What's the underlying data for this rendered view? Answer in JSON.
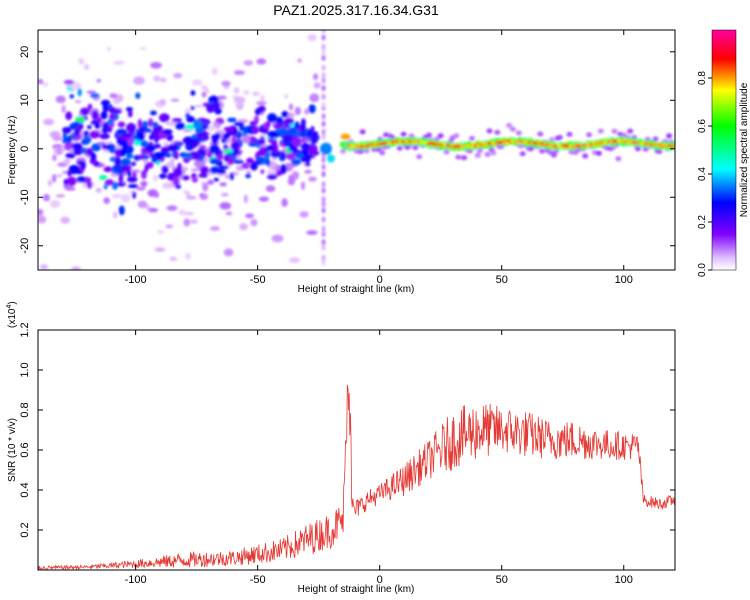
{
  "title": "PAZ1.2025.317.16.34.G31",
  "chart_data": [
    {
      "type": "heatmap",
      "name": "spectrogram",
      "xlabel": "Height of straight line (km)",
      "ylabel": "Frequency (Hz)",
      "xlim": [
        -140,
        121
      ],
      "ylim": [
        -25,
        24.5
      ],
      "xticks": [
        -100,
        -50,
        0,
        50,
        100
      ],
      "yticks": [
        -20,
        -10,
        0,
        10,
        20
      ],
      "colorbar": {
        "label": "Normalized spectral amplitude",
        "range": [
          0,
          1
        ],
        "ticks": [
          "0.0",
          "0.2",
          "0.4",
          "0.6",
          "0.8"
        ],
        "tick_values": [
          0.0,
          0.2,
          0.4,
          0.6,
          0.8
        ],
        "colors": [
          "#ffffff",
          "#e8c8ff",
          "#8000ff",
          "#0000ff",
          "#00ffff",
          "#00ff00",
          "#ffff00",
          "#ff0000",
          "#ff00a0"
        ]
      },
      "ridges": [
        {
          "name": "pre-event scatter",
          "x_range": [
            -140,
            -25
          ],
          "center_freq": 0,
          "freq_spread": 8,
          "amplitude": 0.25
        },
        {
          "name": "post-event line",
          "x_range": [
            -15,
            121
          ],
          "center_freq": 1,
          "freq_spread": 1,
          "amplitude": 0.9
        }
      ]
    },
    {
      "type": "line",
      "name": "snr",
      "xlabel": "Height of straight line (km)",
      "ylabel": "SNR (10 * v/v)",
      "multiplier_label": "(x10",
      "multiplier_exp": "4",
      "xlim": [
        -140,
        121
      ],
      "ylim": [
        0,
        1.2
      ],
      "xticks": [
        -100,
        -50,
        0,
        50,
        100
      ],
      "yticks": [
        "0.2",
        "0.4",
        "0.6",
        "0.8",
        "1.0",
        "1.2"
      ],
      "ytick_values": [
        0.2,
        0.4,
        0.6,
        0.8,
        1.0,
        1.2
      ],
      "color": "#e53935",
      "envelope": {
        "x": [
          -140,
          -120,
          -100,
          -80,
          -60,
          -40,
          -30,
          -20,
          -15,
          -13,
          -12,
          -10,
          -5,
          0,
          10,
          20,
          30,
          40,
          50,
          60,
          70,
          80,
          90,
          100,
          106,
          108,
          115,
          121
        ],
        "mean": [
          0.01,
          0.015,
          0.03,
          0.05,
          0.06,
          0.1,
          0.15,
          0.2,
          0.25,
          0.9,
          0.3,
          0.3,
          0.35,
          0.38,
          0.45,
          0.55,
          0.65,
          0.7,
          0.7,
          0.68,
          0.65,
          0.65,
          0.63,
          0.62,
          0.62,
          0.35,
          0.33,
          0.35
        ],
        "noise": [
          0.01,
          0.01,
          0.02,
          0.04,
          0.04,
          0.06,
          0.08,
          0.09,
          0.1,
          0.1,
          0.1,
          0.05,
          0.05,
          0.05,
          0.08,
          0.1,
          0.15,
          0.15,
          0.12,
          0.12,
          0.1,
          0.1,
          0.08,
          0.07,
          0.07,
          0.03,
          0.03,
          0.03
        ]
      }
    }
  ]
}
